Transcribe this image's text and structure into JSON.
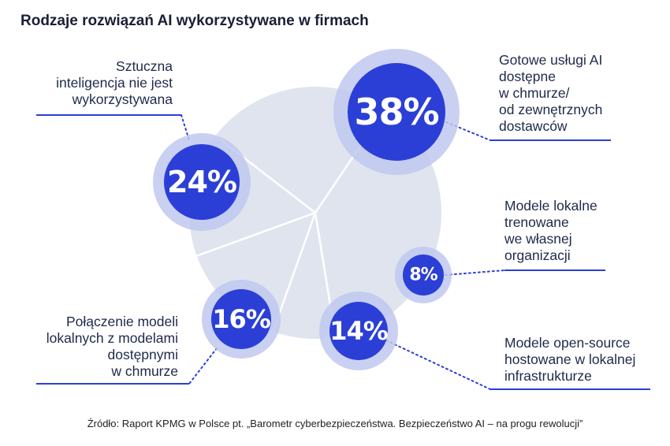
{
  "title": "Rodzaje rozwiązań AI wykorzystywane w firmach",
  "source": "Źródło: Raport KPMG w Polsce pt. „Barometr cyberbezpieczeństwa. Bezpieczeństwo AI – na progu rewolucji”",
  "colors": {
    "pie_fill": "#dfe4ef",
    "pie_divider": "#ffffff",
    "bubble_outer": "#bfc8ef",
    "bubble_inner": "#2b3fd6",
    "leader": "#2b3fd6",
    "underline": "#2b3fd6"
  },
  "chart_data": {
    "type": "pie",
    "title": "Rodzaje rozwiązań AI wykorzystywane w firmach",
    "slices": [
      {
        "label": "Gotowe usługi AI dostępne w chmurze/ od zewnętrznych dostawców",
        "value": 38,
        "display": "38%"
      },
      {
        "label": "Modele lokalne trenowane we własnej organizacji",
        "value": 8,
        "display": "8%"
      },
      {
        "label": "Modele open-source hostowane w lokalnej infrastrukturze",
        "value": 14,
        "display": "14%"
      },
      {
        "label": "Połączenie modeli lokalnych z modelami dostępnymi w chmurze",
        "value": 16,
        "display": "16%"
      },
      {
        "label": "Sztuczna inteligencja nie jest wykorzystywana",
        "value": 24,
        "display": "24%"
      }
    ],
    "label_lines": [
      [
        "Gotowe usługi AI",
        "dostępne",
        "w chmurze/",
        "od zewnętrznych",
        "dostawców"
      ],
      [
        "Modele lokalne",
        "trenowane",
        "we własnej",
        "organizacji"
      ],
      [
        "Modele open-source",
        "hostowane w lokalnej",
        "infrastrukturze"
      ],
      [
        "Połączenie modeli",
        "lokalnych z modelami",
        "dostępnymi",
        "w chmurze"
      ],
      [
        "Sztuczna",
        "inteligencja nie jest",
        "wykorzystywana"
      ]
    ]
  }
}
